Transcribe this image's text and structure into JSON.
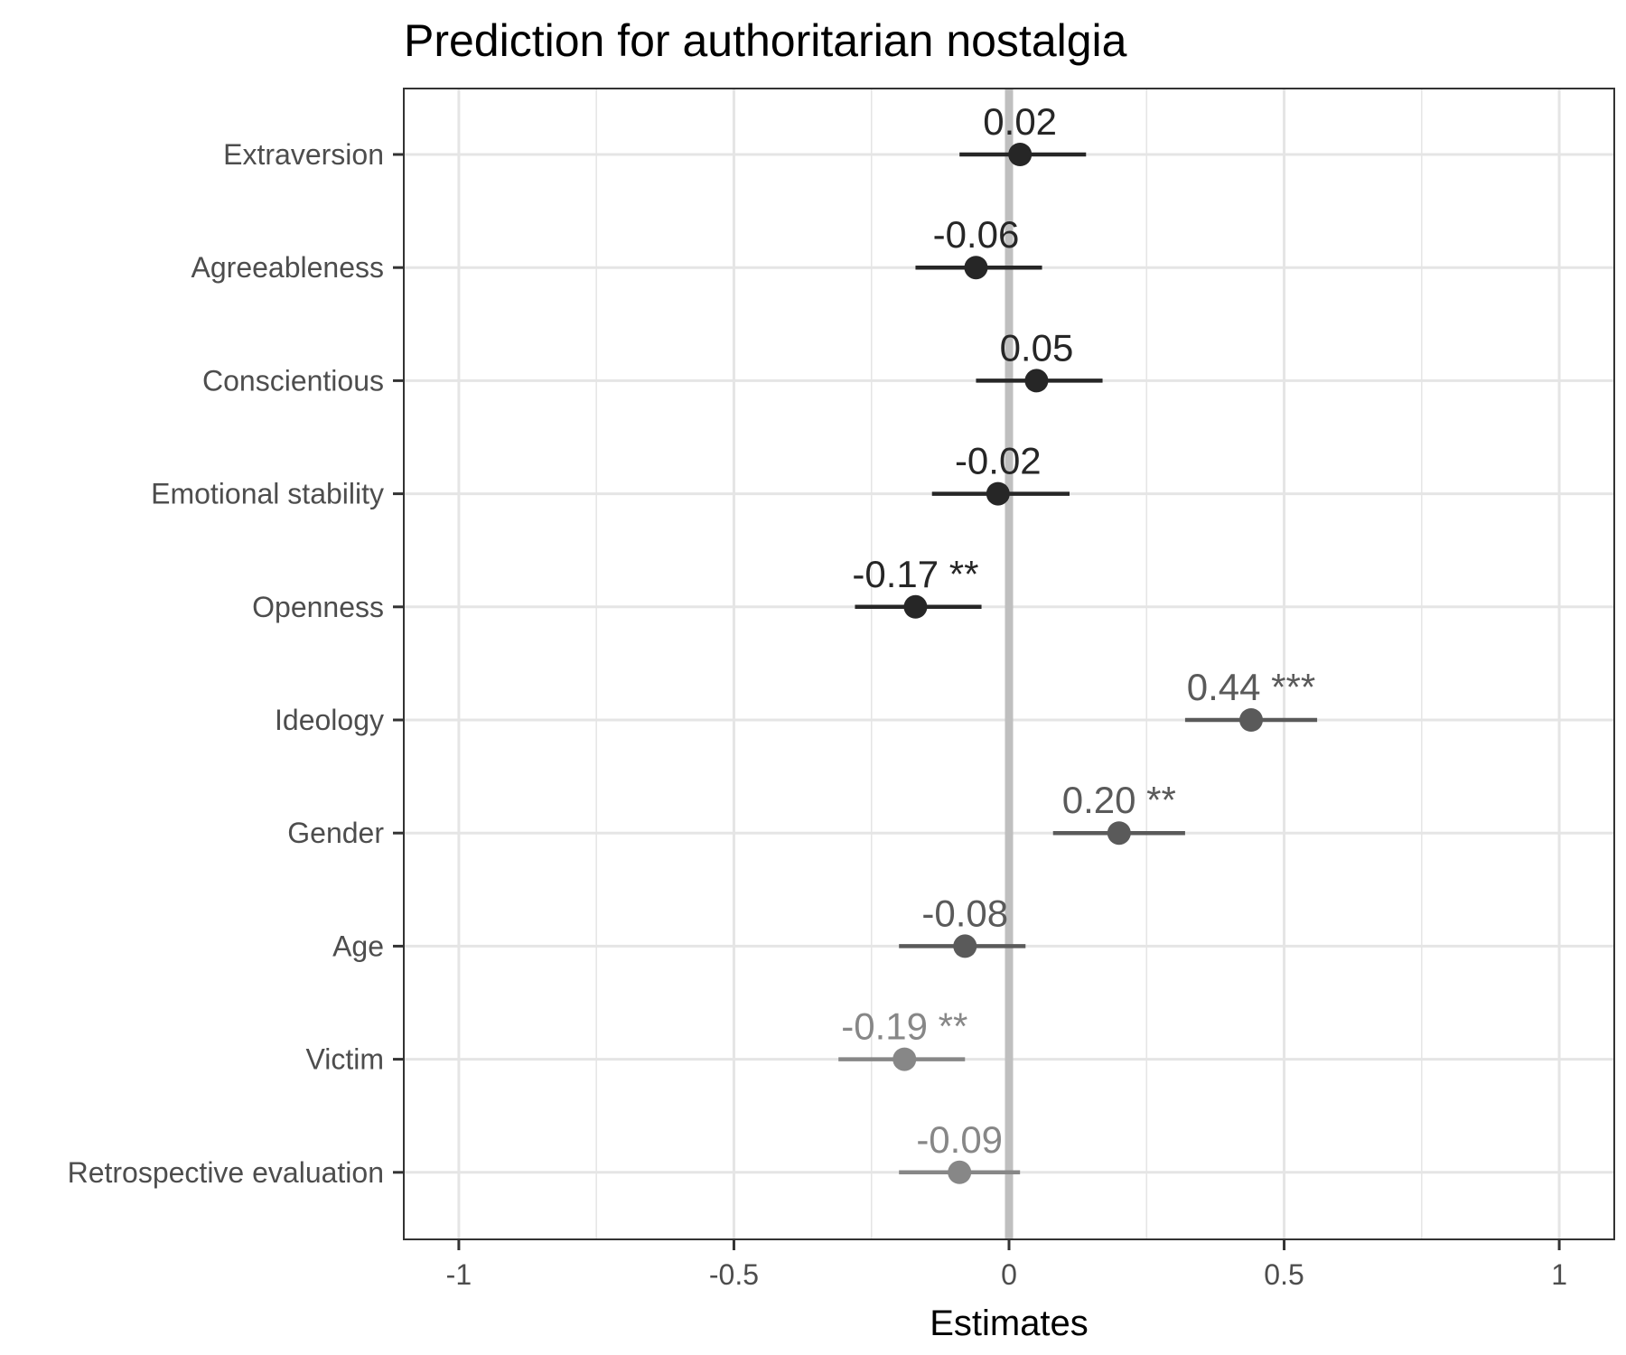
{
  "chart_data": {
    "type": "scatter",
    "title": "Prediction for authoritarian nostalgia",
    "xlabel": "Estimates",
    "ylabel": "",
    "xlim": [
      -1.1,
      1.1
    ],
    "x_ticks": [
      -1,
      -0.5,
      0,
      0.5,
      1
    ],
    "x_tick_labels": [
      "-1",
      "-0.5",
      "0",
      "0.5",
      "1"
    ],
    "grid": true,
    "reference_line": 0,
    "categories": [
      "Extraversion",
      "Agreeableness",
      "Conscientious",
      "Emotional stability",
      "Openness",
      "Ideology",
      "Gender",
      "Age",
      "Victim",
      "Retrospective evaluation"
    ],
    "points": [
      {
        "term": "Extraversion",
        "estimate": 0.02,
        "ci_low": -0.09,
        "ci_high": 0.14,
        "label": "0.02",
        "group": 0
      },
      {
        "term": "Agreeableness",
        "estimate": -0.06,
        "ci_low": -0.17,
        "ci_high": 0.06,
        "label": "-0.06",
        "group": 0
      },
      {
        "term": "Conscientious",
        "estimate": 0.05,
        "ci_low": -0.06,
        "ci_high": 0.17,
        "label": "0.05",
        "group": 0
      },
      {
        "term": "Emotional stability",
        "estimate": -0.02,
        "ci_low": -0.14,
        "ci_high": 0.11,
        "label": "-0.02",
        "group": 0
      },
      {
        "term": "Openness",
        "estimate": -0.17,
        "ci_low": -0.28,
        "ci_high": -0.05,
        "label": "-0.17 **",
        "group": 0
      },
      {
        "term": "Ideology",
        "estimate": 0.44,
        "ci_low": 0.32,
        "ci_high": 0.56,
        "label": "0.44 ***",
        "group": 1
      },
      {
        "term": "Gender",
        "estimate": 0.2,
        "ci_low": 0.08,
        "ci_high": 0.32,
        "label": "0.20 **",
        "group": 1
      },
      {
        "term": "Age",
        "estimate": -0.08,
        "ci_low": -0.2,
        "ci_high": 0.03,
        "label": "-0.08",
        "group": 1
      },
      {
        "term": "Victim",
        "estimate": -0.19,
        "ci_low": -0.31,
        "ci_high": -0.08,
        "label": "-0.19 **",
        "group": 2
      },
      {
        "term": "Retrospective evaluation",
        "estimate": -0.09,
        "ci_low": -0.2,
        "ci_high": 0.02,
        "label": "-0.09",
        "group": 2
      }
    ],
    "group_colors": [
      "#262626",
      "#5a5a5a",
      "#878787"
    ],
    "colors": {
      "grid": "#e5e5e5",
      "reference_line": "#bfbfbf",
      "panel_border": "#333333"
    }
  }
}
